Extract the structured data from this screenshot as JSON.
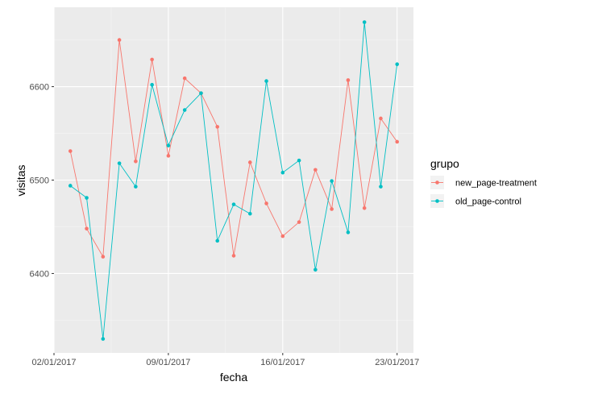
{
  "chart_data": {
    "type": "line",
    "xlabel": "fecha",
    "ylabel": "visitas",
    "x_range": [
      "2017-01-02",
      "2017-01-24"
    ],
    "ylim": [
      6315,
      6685
    ],
    "x_ticks": [
      {
        "date": "2017-01-02",
        "label": "02/01/2017"
      },
      {
        "date": "2017-01-09",
        "label": "09/01/2017"
      },
      {
        "date": "2017-01-16",
        "label": "16/01/2017"
      },
      {
        "date": "2017-01-23",
        "label": "23/01/2017"
      }
    ],
    "y_ticks": [
      6400,
      6500,
      6600
    ],
    "grid": true,
    "legend": {
      "title": "grupo",
      "position": "right"
    },
    "x": [
      "2017-01-03",
      "2017-01-04",
      "2017-01-05",
      "2017-01-06",
      "2017-01-07",
      "2017-01-08",
      "2017-01-09",
      "2017-01-10",
      "2017-01-11",
      "2017-01-12",
      "2017-01-13",
      "2017-01-14",
      "2017-01-15",
      "2017-01-16",
      "2017-01-17",
      "2017-01-18",
      "2017-01-19",
      "2017-01-20",
      "2017-01-21",
      "2017-01-22",
      "2017-01-23"
    ],
    "series": [
      {
        "name": "new_page-treatment",
        "color": "#F8766D",
        "values": [
          6531,
          6448,
          6418,
          6650,
          6520,
          6629,
          6526,
          6609,
          6593,
          6557,
          6419,
          6519,
          6475,
          6440,
          6455,
          6511,
          6469,
          6607,
          6470,
          6566,
          6541
        ]
      },
      {
        "name": "old_page-control",
        "color": "#00BFC4",
        "values": [
          6494,
          6481,
          6330,
          6518,
          6493,
          6602,
          6537,
          6575,
          6593,
          6435,
          6474,
          6464,
          6606,
          6508,
          6521,
          6404,
          6499,
          6444,
          6669,
          6493,
          6624
        ]
      }
    ]
  }
}
